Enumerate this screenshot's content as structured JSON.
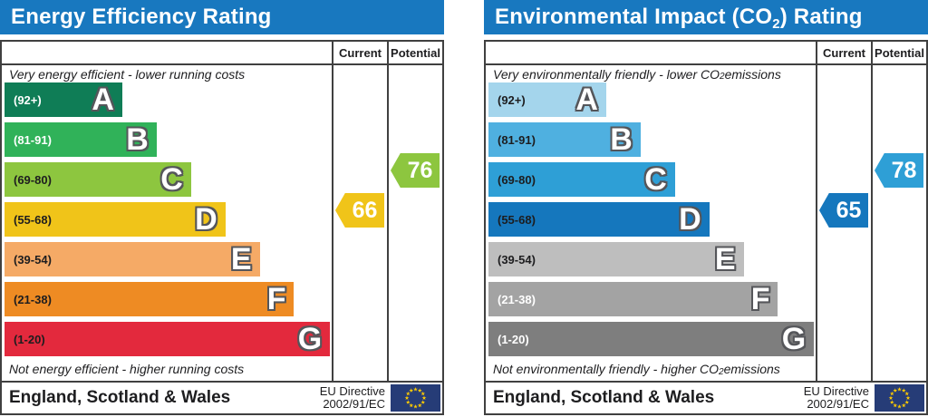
{
  "chart_data": [
    {
      "type": "bar",
      "title": "Energy Efficiency Rating",
      "categories": [
        "A (92+)",
        "B (81-91)",
        "C (69-80)",
        "D (55-68)",
        "E (39-54)",
        "F (21-38)",
        "G (1-20)"
      ],
      "bar_width_pct": [
        36,
        46.5,
        57,
        67.5,
        78,
        88.5,
        99.5
      ],
      "current": 66,
      "current_band": "D",
      "potential": 76,
      "potential_band": "C",
      "top_note": "Very energy efficient - lower running costs",
      "bottom_note": "Not energy efficient - higher running costs",
      "region": "England, Scotland & Wales",
      "directive": "EU Directive 2002/91/EC"
    },
    {
      "type": "bar",
      "title": "Environmental Impact (CO2) Rating",
      "categories": [
        "A (92+)",
        "B (81-91)",
        "C (69-80)",
        "D (55-68)",
        "E (39-54)",
        "F (21-38)",
        "G (1-20)"
      ],
      "bar_width_pct": [
        36,
        46.5,
        57,
        67.5,
        78,
        88.5,
        99.5
      ],
      "current": 65,
      "current_band": "D",
      "potential": 78,
      "potential_band": "C",
      "top_note": "Very environmentally friendly - lower CO2 emissions",
      "bottom_note": "Not environmentally friendly - higher CO2 emissions",
      "region": "England, Scotland & Wales",
      "directive": "EU Directive 2002/91/EC"
    }
  ],
  "panels": [
    {
      "title_parts": [
        {
          "t": "Energy Efficiency Rating"
        }
      ],
      "columns": [
        "Current",
        "Potential"
      ],
      "top_caption_parts": [
        {
          "t": "Very energy efficient - lower running costs"
        }
      ],
      "bottom_caption_parts": [
        {
          "t": "Not energy efficient - higher running costs"
        }
      ],
      "colors": {
        "header_bg": "#1878bf",
        "border": "#404040"
      },
      "bands": [
        {
          "letter": "A",
          "range": "(92+)",
          "color": "#0f7d56",
          "width_pct": 36,
          "text_color": "#ffffff"
        },
        {
          "letter": "B",
          "range": "(81-91)",
          "color": "#30b259",
          "width_pct": 46.5,
          "text_color": "#ffffff"
        },
        {
          "letter": "C",
          "range": "(69-80)",
          "color": "#8dc63f",
          "width_pct": 57,
          "text_color": "#1d1d1f"
        },
        {
          "letter": "D",
          "range": "(55-68)",
          "color": "#f0c419",
          "width_pct": 67.5,
          "text_color": "#1d1d1f"
        },
        {
          "letter": "E",
          "range": "(39-54)",
          "color": "#f5aa66",
          "width_pct": 78,
          "text_color": "#1d1d1f"
        },
        {
          "letter": "F",
          "range": "(21-38)",
          "color": "#ee8b23",
          "width_pct": 88.5,
          "text_color": "#1d1d1f"
        },
        {
          "letter": "G",
          "range": "(1-20)",
          "color": "#e3293d",
          "width_pct": 99.5,
          "text_color": "#1d1d1f"
        }
      ],
      "current": {
        "value": "66",
        "band": "D",
        "color": "#f0c419"
      },
      "potential": {
        "value": "76",
        "band": "C",
        "color": "#8dc63f"
      },
      "footer": {
        "region": "England, Scotland & Wales",
        "directive_line1": "EU Directive",
        "directive_line2": "2002/91/EC"
      }
    },
    {
      "title_parts": [
        {
          "t": "Environmental Impact (CO"
        },
        {
          "t": "2",
          "sub": true
        },
        {
          "t": ") Rating"
        }
      ],
      "columns": [
        "Current",
        "Potential"
      ],
      "top_caption_parts": [
        {
          "t": "Very environmentally friendly - lower CO"
        },
        {
          "t": "2",
          "sub": true
        },
        {
          "t": " emissions"
        }
      ],
      "bottom_caption_parts": [
        {
          "t": "Not environmentally friendly - higher CO"
        },
        {
          "t": "2",
          "sub": true
        },
        {
          "t": " emissions"
        }
      ],
      "colors": {
        "header_bg": "#1878bf",
        "border": "#404040"
      },
      "bands": [
        {
          "letter": "A",
          "range": "(92+)",
          "color": "#a4d5ec",
          "width_pct": 36,
          "text_color": "#1d1d1f"
        },
        {
          "letter": "B",
          "range": "(81-91)",
          "color": "#4fb0e0",
          "width_pct": 46.5,
          "text_color": "#1d1d1f"
        },
        {
          "letter": "C",
          "range": "(69-80)",
          "color": "#2e9fd6",
          "width_pct": 57,
          "text_color": "#1d1d1f"
        },
        {
          "letter": "D",
          "range": "(55-68)",
          "color": "#1577bd",
          "width_pct": 67.5,
          "text_color": "#1d1d1f"
        },
        {
          "letter": "E",
          "range": "(39-54)",
          "color": "#bebebe",
          "width_pct": 78,
          "text_color": "#1d1d1f"
        },
        {
          "letter": "F",
          "range": "(21-38)",
          "color": "#a3a3a3",
          "width_pct": 88.5,
          "text_color": "#ffffff"
        },
        {
          "letter": "G",
          "range": "(1-20)",
          "color": "#7e7e7e",
          "width_pct": 99.5,
          "text_color": "#ffffff"
        }
      ],
      "current": {
        "value": "65",
        "band": "D",
        "color": "#1577bd"
      },
      "potential": {
        "value": "78",
        "band": "C",
        "color": "#2e9fd6"
      },
      "footer": {
        "region": "England, Scotland & Wales",
        "directive_line1": "EU Directive",
        "directive_line2": "2002/91/EC"
      }
    }
  ]
}
